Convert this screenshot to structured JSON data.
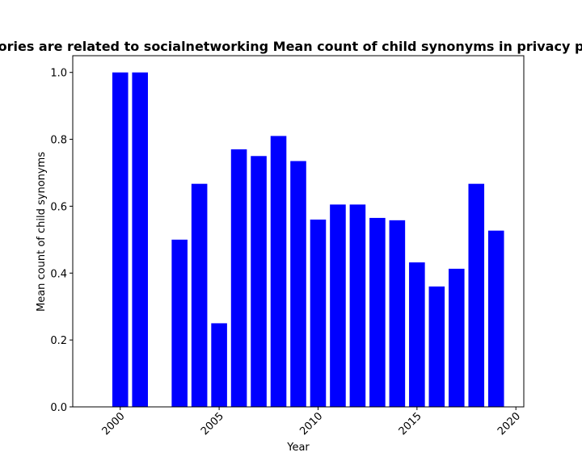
{
  "chart_data": {
    "type": "bar",
    "title": "ories are related to socialnetworking Mean count of child synonyms in privacy p",
    "xlabel": "Year",
    "ylabel": "Mean count of child synonyms",
    "x": [
      2000,
      2001,
      2003,
      2004,
      2005,
      2006,
      2007,
      2008,
      2009,
      2010,
      2011,
      2012,
      2013,
      2014,
      2015,
      2016,
      2017,
      2018,
      2019
    ],
    "values": [
      1.0,
      1.0,
      0.5,
      0.667,
      0.25,
      0.77,
      0.75,
      0.81,
      0.735,
      0.56,
      0.605,
      0.605,
      0.565,
      0.558,
      0.432,
      0.36,
      0.413,
      0.667,
      0.527
    ],
    "xlim": [
      1997.6,
      2020.4
    ],
    "ylim": [
      0,
      1.05
    ],
    "xticks": [
      2000,
      2005,
      2010,
      2015,
      2020
    ],
    "yticks": [
      0.0,
      0.2,
      0.4,
      0.6,
      0.8,
      1.0
    ],
    "xtick_labels": [
      "2000",
      "2005",
      "2010",
      "2015",
      "2020"
    ],
    "ytick_labels": [
      "0.0",
      "0.2",
      "0.4",
      "0.6",
      "0.8",
      "1.0"
    ],
    "bar_color": "#0000ff",
    "grid": false,
    "legend": "none"
  }
}
